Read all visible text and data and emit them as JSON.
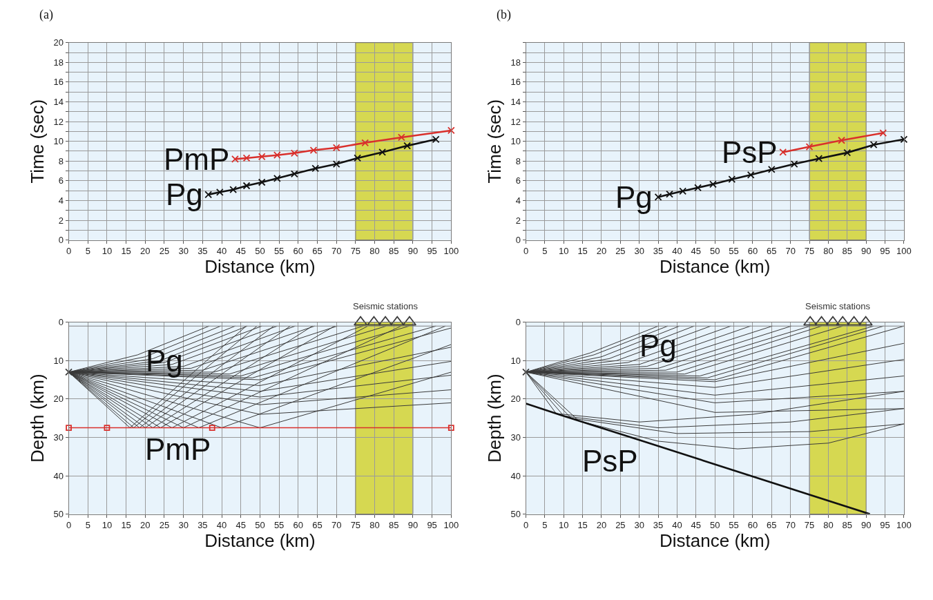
{
  "chart_data": [
    {
      "type": "line",
      "xlabel": "Distance (km)",
      "ylabel": "Time (sec)",
      "xlim": [
        0,
        100
      ],
      "xticks": [
        0,
        5,
        10,
        15,
        20,
        25,
        30,
        35,
        40,
        45,
        50,
        55,
        60,
        65,
        70,
        75,
        80,
        85,
        90,
        95,
        100
      ],
      "ylim": [
        0,
        20
      ],
      "yticks": [
        0,
        {
          "value": 1,
          "label": null
        },
        2,
        {
          "value": 3,
          "label": null
        },
        4,
        {
          "value": 5,
          "label": null
        },
        6,
        {
          "value": 7,
          "label": null
        },
        8,
        {
          "value": 9,
          "label": null
        },
        10,
        {
          "value": 11,
          "label": null
        },
        12,
        {
          "value": 13,
          "label": null
        },
        14,
        {
          "value": 15,
          "label": null
        },
        16,
        {
          "value": 17,
          "label": null
        },
        18,
        {
          "value": 19,
          "label": null
        },
        20
      ],
      "grid": true,
      "marker": "cross",
      "bands": [
        {
          "axis": "x",
          "from": 75,
          "to": 90,
          "color": "#d6d851"
        }
      ],
      "annotations": [
        "(a)"
      ],
      "series": [
        {
          "name": "Pg",
          "color": "#111111",
          "x": [
            36.5,
            39.5,
            43,
            46.5,
            50.5,
            54.5,
            59,
            64.5,
            70,
            75.5,
            82,
            88.5,
            96
          ],
          "values": [
            4.6,
            4.85,
            5.1,
            5.5,
            5.85,
            6.25,
            6.7,
            7.25,
            7.7,
            8.3,
            8.9,
            9.55,
            10.2
          ]
        },
        {
          "name": "PmP",
          "color": "#d9302c",
          "x": [
            43.5,
            46.5,
            50.5,
            54.5,
            59,
            64,
            70,
            77.5,
            87,
            100
          ],
          "values": [
            8.2,
            8.3,
            8.45,
            8.6,
            8.8,
            9.1,
            9.35,
            9.85,
            10.4,
            11.1
          ]
        }
      ]
    },
    {
      "type": "line",
      "xlabel": "Distance (km)",
      "ylabel": "Time (sec)",
      "xlim": [
        0,
        100
      ],
      "xticks": [
        0,
        5,
        10,
        15,
        20,
        25,
        30,
        35,
        40,
        45,
        50,
        55,
        60,
        65,
        70,
        75,
        80,
        85,
        90,
        95,
        100
      ],
      "ylim": [
        0,
        20
      ],
      "yticks": [
        0,
        {
          "value": 1,
          "label": null
        },
        2,
        {
          "value": 3,
          "label": null
        },
        4,
        {
          "value": 5,
          "label": null
        },
        6,
        {
          "value": 7,
          "label": null
        },
        8,
        {
          "value": 9,
          "label": null
        },
        10,
        {
          "value": 11,
          "label": null
        },
        12,
        {
          "value": 13,
          "label": null
        },
        14,
        {
          "value": 15,
          "label": null
        },
        16,
        {
          "value": 17,
          "label": null
        },
        18,
        {
          "value": 19,
          "label": null
        },
        {
          "value": 20,
          "label": null
        }
      ],
      "grid": true,
      "marker": "cross",
      "bands": [
        {
          "axis": "x",
          "from": 75,
          "to": 90,
          "color": "#d6d851"
        }
      ],
      "annotations": [
        "(b)"
      ],
      "series": [
        {
          "name": "Pg",
          "color": "#111111",
          "x": [
            35,
            38,
            41.5,
            45.5,
            49.5,
            54.5,
            59.5,
            65,
            71,
            77.5,
            85,
            92,
            100
          ],
          "values": [
            4.35,
            4.65,
            4.95,
            5.3,
            5.65,
            6.15,
            6.6,
            7.15,
            7.7,
            8.25,
            8.85,
            9.65,
            10.2
          ]
        },
        {
          "name": "PsP",
          "color": "#d9302c",
          "x": [
            68,
            75,
            83.5,
            94.5
          ],
          "values": [
            8.9,
            9.45,
            10.1,
            10.85
          ]
        }
      ]
    },
    {
      "type": "line",
      "xlabel": "Distance (km)",
      "ylabel": "Depth (km)",
      "xlim": [
        0,
        100
      ],
      "xticks": [
        0,
        5,
        10,
        15,
        20,
        25,
        30,
        35,
        40,
        45,
        50,
        55,
        60,
        65,
        70,
        75,
        80,
        85,
        90,
        95,
        100
      ],
      "ylim": [
        50,
        0
      ],
      "yticks": [
        0,
        10,
        20,
        30,
        40,
        50
      ],
      "grid": true,
      "marker": "none",
      "bands": [
        {
          "axis": "x",
          "from": 75,
          "to": 90,
          "color": "#d6d851"
        }
      ],
      "ref_lines": [
        {
          "axis": "y",
          "value": 1,
          "color": "#808080"
        }
      ],
      "annotations": [
        {
          "text": "Pg",
          "x": 25,
          "y": 10
        }
      ],
      "series": [
        {
          "type": "line",
          "color": "#3a3a3a",
          "x": [
            0,
            18,
            36.7
          ],
          "values": [
            13,
            8.5,
            1
          ]
        },
        {
          "type": "line",
          "color": "#3a3a3a",
          "x": [
            0,
            20,
            39.7
          ],
          "values": [
            13,
            9,
            1
          ]
        },
        {
          "type": "line",
          "color": "#3a3a3a",
          "x": [
            0,
            22,
            43.5
          ],
          "values": [
            13,
            9.5,
            1
          ]
        },
        {
          "type": "line",
          "color": "#3a3a3a",
          "x": [
            0,
            24,
            46.7
          ],
          "values": [
            13,
            10,
            1
          ]
        },
        {
          "type": "line",
          "color": "#3a3a3a",
          "x": [
            0,
            25,
            50.5
          ],
          "values": [
            13,
            10.5,
            1
          ]
        },
        {
          "type": "line",
          "color": "#3a3a3a",
          "x": [
            0,
            27,
            54.5
          ],
          "values": [
            13,
            11,
            1
          ]
        },
        {
          "type": "line",
          "color": "#3a3a3a",
          "x": [
            0,
            30,
            59.2
          ],
          "values": [
            13,
            11.5,
            1
          ]
        },
        {
          "type": "line",
          "color": "#3a3a3a",
          "x": [
            0,
            32,
            64.3
          ],
          "values": [
            13,
            12,
            1
          ]
        },
        {
          "type": "line",
          "color": "#3a3a3a",
          "x": [
            0,
            35,
            70.2
          ],
          "values": [
            13,
            12.5,
            1
          ]
        },
        {
          "type": "line",
          "color": "#3a3a3a",
          "x": [
            0,
            38,
            77
          ],
          "values": [
            13,
            13,
            1
          ]
        },
        {
          "type": "line",
          "color": "#3a3a3a",
          "x": [
            0,
            42,
            83
          ],
          "values": [
            13,
            13.5,
            1
          ]
        },
        {
          "type": "line",
          "color": "#3a3a3a",
          "x": [
            0,
            45,
            89
          ],
          "values": [
            13,
            14,
            1
          ]
        },
        {
          "type": "line",
          "color": "#3a3a3a",
          "x": [
            0,
            48,
            96
          ],
          "values": [
            13,
            14.5,
            1
          ]
        },
        {
          "type": "line",
          "color": "#3a3a3a",
          "x": [
            0,
            50,
            100
          ],
          "values": [
            13,
            15,
            1.5
          ]
        },
        {
          "type": "line",
          "color": "#3a3a3a",
          "x": [
            0,
            50,
            100
          ],
          "values": [
            13,
            16.5,
            6.5
          ]
        },
        {
          "type": "line",
          "color": "#3a3a3a",
          "x": [
            0,
            50,
            100
          ],
          "values": [
            13,
            18,
            10.2
          ]
        },
        {
          "type": "line",
          "color": "#3a3a3a",
          "x": [
            0,
            50,
            100
          ],
          "values": [
            13,
            19.5,
            13.8
          ]
        },
        {
          "type": "line",
          "color": "#3a3a3a",
          "x": [
            0,
            50,
            100
          ],
          "values": [
            13,
            21.5,
            17.6
          ]
        },
        {
          "type": "line",
          "color": "#3a3a3a",
          "x": [
            0,
            50,
            100
          ],
          "values": [
            13,
            24,
            21
          ]
        },
        {
          "type": "line",
          "color": "#3a3a3a",
          "x": [
            0,
            16,
            46.4
          ],
          "values": [
            13,
            27.5,
            1
          ]
        },
        {
          "type": "line",
          "color": "#3a3a3a",
          "x": [
            0,
            17,
            49.2
          ],
          "values": [
            13,
            27.5,
            1
          ]
        },
        {
          "type": "line",
          "color": "#3a3a3a",
          "x": [
            0,
            18.5,
            53.6
          ],
          "values": [
            13,
            27.5,
            1
          ]
        },
        {
          "type": "line",
          "color": "#3a3a3a",
          "x": [
            0,
            20,
            57.9
          ],
          "values": [
            13,
            27.5,
            1
          ]
        },
        {
          "type": "line",
          "color": "#3a3a3a",
          "x": [
            0,
            22,
            63.7
          ],
          "values": [
            13,
            27.5,
            1
          ]
        },
        {
          "type": "line",
          "color": "#3a3a3a",
          "x": [
            0,
            24,
            69.5
          ],
          "values": [
            13,
            27.5,
            1
          ]
        },
        {
          "type": "line",
          "color": "#3a3a3a",
          "x": [
            0,
            27,
            78.2
          ],
          "values": [
            13,
            27.5,
            1
          ]
        },
        {
          "type": "line",
          "color": "#3a3a3a",
          "x": [
            0,
            30,
            86.9
          ],
          "values": [
            13,
            27.5,
            1
          ]
        },
        {
          "type": "line",
          "color": "#3a3a3a",
          "x": [
            0,
            34,
            98.5
          ],
          "values": [
            13,
            27.5,
            1
          ]
        },
        {
          "type": "line",
          "color": "#3a3a3a",
          "x": [
            0,
            40,
            100
          ],
          "values": [
            13,
            27.5,
            5.8
          ]
        },
        {
          "type": "line",
          "color": "#3a3a3a",
          "x": [
            0,
            50,
            100
          ],
          "values": [
            13,
            27.5,
            13
          ]
        },
        {
          "type": "line",
          "name": "PmP",
          "color": "#d9302c",
          "marker": "square",
          "x": [
            0,
            10,
            37.5,
            100
          ],
          "values": [
            27.5,
            27.5,
            27.5,
            27.5
          ]
        },
        {
          "type": "scatter",
          "color": "#3a3a3a",
          "marker": "cross",
          "x": [
            0
          ],
          "values": [
            13
          ]
        },
        {
          "type": "scatter",
          "name": "Seismic stations",
          "color": "#3a3a3a",
          "marker": "triangle",
          "x": [
            76.3,
            79.8,
            82.8,
            85.9,
            89.1
          ],
          "values": [
            0,
            0,
            0,
            0,
            0
          ]
        }
      ]
    },
    {
      "type": "line",
      "xlabel": "Distance (km)",
      "ylabel": "Depth (km)",
      "xlim": [
        0,
        100
      ],
      "xticks": [
        0,
        5,
        10,
        15,
        20,
        25,
        30,
        35,
        40,
        45,
        50,
        55,
        60,
        65,
        70,
        75,
        80,
        85,
        90,
        95,
        100
      ],
      "ylim": [
        50,
        0
      ],
      "yticks": [
        0,
        10,
        20,
        30,
        40,
        50
      ],
      "grid": true,
      "marker": "none",
      "bands": [
        {
          "axis": "x",
          "from": 75,
          "to": 90,
          "color": "#d6d851"
        }
      ],
      "ref_lines": [
        {
          "axis": "y",
          "value": 1,
          "color": "#808080"
        }
      ],
      "annotations": [
        {
          "text": "Pg",
          "x": 35,
          "y": 6
        }
      ],
      "series": [
        {
          "type": "line",
          "color": "#3a3a3a",
          "x": [
            0,
            17,
            35
          ],
          "values": [
            13,
            8,
            1
          ]
        },
        {
          "type": "line",
          "color": "#3a3a3a",
          "x": [
            0,
            18,
            37.5
          ],
          "values": [
            13,
            8.5,
            1
          ]
        },
        {
          "type": "line",
          "color": "#3a3a3a",
          "x": [
            0,
            20,
            40.6
          ],
          "values": [
            13,
            9,
            1
          ]
        },
        {
          "type": "line",
          "color": "#3a3a3a",
          "x": [
            0,
            22,
            44.5
          ],
          "values": [
            13,
            9.5,
            1
          ]
        },
        {
          "type": "line",
          "color": "#3a3a3a",
          "x": [
            0,
            24,
            48.9
          ],
          "values": [
            13,
            10,
            1
          ]
        },
        {
          "type": "line",
          "color": "#3a3a3a",
          "x": [
            0,
            27,
            54.2
          ],
          "values": [
            13,
            10.5,
            1
          ]
        },
        {
          "type": "line",
          "color": "#3a3a3a",
          "x": [
            0,
            30,
            59.4
          ],
          "values": [
            13,
            11,
            1
          ]
        },
        {
          "type": "line",
          "color": "#3a3a3a",
          "x": [
            0,
            32,
            65.2
          ],
          "values": [
            13,
            11.5,
            1
          ]
        },
        {
          "type": "line",
          "color": "#3a3a3a",
          "x": [
            0,
            35,
            70.2
          ],
          "values": [
            13,
            12,
            1
          ]
        },
        {
          "type": "line",
          "color": "#3a3a3a",
          "x": [
            0,
            37,
            75.2
          ],
          "values": [
            13,
            12.5,
            1
          ]
        },
        {
          "type": "line",
          "color": "#3a3a3a",
          "x": [
            0,
            40,
            78.2
          ],
          "values": [
            13,
            13,
            1
          ]
        },
        {
          "type": "line",
          "color": "#3a3a3a",
          "x": [
            0,
            42,
            83.8
          ],
          "values": [
            13,
            13.5,
            1
          ]
        },
        {
          "type": "line",
          "color": "#3a3a3a",
          "x": [
            0,
            46,
            92
          ],
          "values": [
            13,
            14,
            1
          ]
        },
        {
          "type": "line",
          "color": "#3a3a3a",
          "x": [
            0,
            48,
            94.6
          ],
          "values": [
            13,
            14.5,
            1
          ]
        },
        {
          "type": "line",
          "color": "#3a3a3a",
          "x": [
            0,
            50,
            100
          ],
          "values": [
            13,
            15,
            1
          ]
        },
        {
          "type": "line",
          "color": "#3a3a3a",
          "x": [
            0,
            50,
            100
          ],
          "values": [
            13,
            15.5,
            5.5
          ]
        },
        {
          "type": "line",
          "color": "#3a3a3a",
          "x": [
            0,
            50,
            100
          ],
          "values": [
            13,
            17,
            9.7
          ]
        },
        {
          "type": "line",
          "color": "#3a3a3a",
          "x": [
            0,
            50,
            100
          ],
          "values": [
            13,
            19,
            14
          ]
        },
        {
          "type": "line",
          "color": "#3a3a3a",
          "x": [
            0,
            50,
            100
          ],
          "values": [
            13,
            21,
            18
          ]
        },
        {
          "type": "line",
          "color": "#3a3a3a",
          "x": [
            0,
            50,
            100
          ],
          "values": [
            13,
            23.5,
            22.5
          ]
        },
        {
          "type": "line",
          "color": "#3a3a3a",
          "x": [
            0,
            8,
            30,
            60,
            100
          ],
          "values": [
            13,
            23.8,
            26,
            24,
            18
          ]
        },
        {
          "type": "line",
          "color": "#3a3a3a",
          "x": [
            0,
            10,
            35,
            70,
            100
          ],
          "values": [
            13,
            24.4,
            27.5,
            26,
            22.5
          ]
        },
        {
          "type": "line",
          "color": "#3a3a3a",
          "x": [
            0,
            12,
            40,
            75,
            100
          ],
          "values": [
            13,
            25,
            29,
            28.5,
            26.5
          ]
        },
        {
          "type": "line",
          "color": "#3a3a3a",
          "x": [
            0,
            14,
            35,
            56,
            80,
            100
          ],
          "values": [
            13,
            25.7,
            31,
            33,
            31.5,
            26.5
          ]
        },
        {
          "type": "line",
          "name": "PsP",
          "color": "#111111",
          "x": [
            0,
            9,
            30,
            91
          ],
          "values": [
            21.2,
            24.1,
            30.7,
            50
          ]
        },
        {
          "type": "scatter",
          "color": "#3a3a3a",
          "marker": "cross",
          "x": [
            0
          ],
          "values": [
            13
          ]
        },
        {
          "type": "scatter",
          "name": "Seismic stations",
          "color": "#3a3a3a",
          "marker": "triangle",
          "x": [
            75.2,
            78.2,
            81.2,
            83.8,
            86.8,
            89.9
          ],
          "values": [
            0,
            0,
            0,
            0,
            0,
            0
          ]
        }
      ]
    }
  ]
}
